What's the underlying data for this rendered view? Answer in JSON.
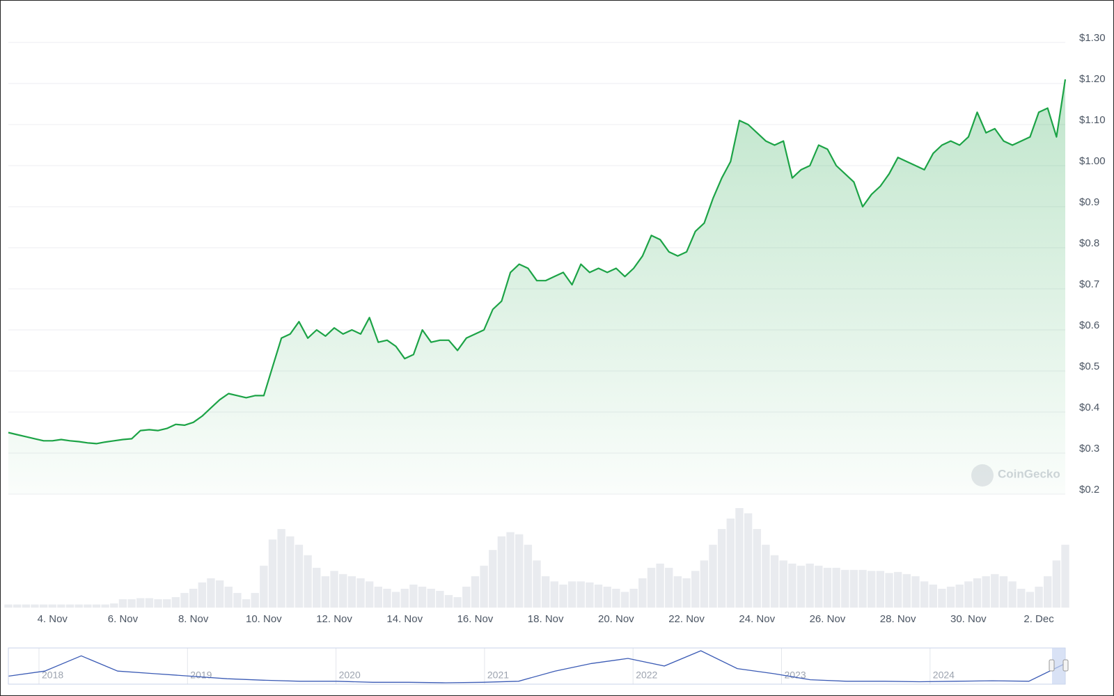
{
  "chart_data": {
    "type": "line",
    "categories": [
      null,
      null,
      null,
      null,
      null,
      "4. Nov",
      null,
      null,
      null,
      null,
      null,
      null,
      null,
      "6. Nov",
      null,
      null,
      null,
      null,
      null,
      null,
      null,
      "8. Nov",
      null,
      null,
      null,
      null,
      null,
      null,
      null,
      "10. Nov",
      null,
      null,
      null,
      null,
      null,
      null,
      null,
      "12. Nov",
      null,
      null,
      null,
      null,
      null,
      null,
      null,
      "14. Nov",
      null,
      null,
      null,
      null,
      null,
      null,
      null,
      "16. Nov",
      null,
      null,
      null,
      null,
      null,
      null,
      null,
      "18. Nov",
      null,
      null,
      null,
      null,
      null,
      null,
      null,
      "20. Nov",
      null,
      null,
      null,
      null,
      null,
      null,
      null,
      "22. Nov",
      null,
      null,
      null,
      null,
      null,
      null,
      null,
      "24. Nov",
      null,
      null,
      null,
      null,
      null,
      null,
      null,
      "26. Nov",
      null,
      null,
      null,
      null,
      null,
      null,
      null,
      "28. Nov",
      null,
      null,
      null,
      null,
      null,
      null,
      null,
      "30. Nov",
      null,
      null,
      null,
      null,
      null,
      null,
      null,
      "2. Dec",
      null,
      null,
      null
    ],
    "series": [
      {
        "color": "#1ca346",
        "values": [
          0.35,
          0.345,
          0.34,
          0.335,
          0.33,
          0.33,
          0.333,
          0.33,
          0.328,
          0.325,
          0.323,
          0.327,
          0.33,
          0.333,
          0.335,
          0.355,
          0.357,
          0.355,
          0.36,
          0.37,
          0.368,
          0.375,
          0.39,
          0.41,
          0.43,
          0.445,
          0.44,
          0.435,
          0.44,
          0.44,
          0.51,
          0.58,
          0.59,
          0.62,
          0.58,
          0.6,
          0.585,
          0.605,
          0.59,
          0.6,
          0.59,
          0.63,
          0.57,
          0.575,
          0.56,
          0.53,
          0.54,
          0.6,
          0.57,
          0.575,
          0.575,
          0.55,
          0.58,
          0.59,
          0.6,
          0.65,
          0.67,
          0.74,
          0.76,
          0.75,
          0.72,
          0.72,
          0.73,
          0.74,
          0.71,
          0.76,
          0.74,
          0.75,
          0.74,
          0.75,
          0.73,
          0.75,
          0.78,
          0.83,
          0.82,
          0.79,
          0.78,
          0.79,
          0.84,
          0.86,
          0.92,
          0.97,
          1.01,
          1.11,
          1.1,
          1.08,
          1.06,
          1.05,
          1.06,
          0.97,
          0.99,
          1.0,
          1.05,
          1.04,
          1.0,
          0.98,
          0.96,
          0.9,
          0.93,
          0.95,
          0.98,
          1.02,
          1.01,
          1.0,
          0.99,
          1.03,
          1.05,
          1.06,
          1.05,
          1.07,
          1.13,
          1.08,
          1.09,
          1.06,
          1.05,
          1.06,
          1.07,
          1.13,
          1.14,
          1.07,
          1.21
        ]
      }
    ],
    "volume": [
      3,
      3,
      3,
      3,
      3,
      3,
      3,
      3,
      3,
      3,
      3,
      3,
      4,
      8,
      8,
      9,
      9,
      8,
      8,
      10,
      14,
      18,
      24,
      28,
      26,
      20,
      14,
      8,
      14,
      40,
      65,
      75,
      68,
      60,
      50,
      38,
      30,
      35,
      32,
      30,
      28,
      25,
      20,
      18,
      15,
      18,
      22,
      20,
      18,
      16,
      12,
      10,
      20,
      30,
      40,
      55,
      68,
      72,
      70,
      60,
      45,
      30,
      25,
      22,
      25,
      25,
      24,
      22,
      20,
      18,
      15,
      18,
      28,
      38,
      42,
      38,
      30,
      28,
      35,
      45,
      60,
      75,
      85,
      95,
      90,
      75,
      60,
      50,
      45,
      42,
      40,
      42,
      40,
      38,
      38,
      36,
      36,
      36,
      35,
      35,
      33,
      34,
      32,
      30,
      25,
      22,
      18,
      20,
      22,
      25,
      28,
      30,
      32,
      30,
      25,
      18,
      15,
      20,
      30,
      45,
      60
    ],
    "ylim": [
      0.2,
      1.3
    ],
    "yticks": [
      {
        "value": 0.2,
        "label": "$0.2"
      },
      {
        "value": 0.3,
        "label": "$0.3"
      },
      {
        "value": 0.4,
        "label": "$0.4"
      },
      {
        "value": 0.5,
        "label": "$0.5"
      },
      {
        "value": 0.6,
        "label": "$0.6"
      },
      {
        "value": 0.7,
        "label": "$0.7"
      },
      {
        "value": 0.8,
        "label": "$0.8"
      },
      {
        "value": 0.9,
        "label": "$0.9"
      },
      {
        "value": 1.0,
        "label": "$1.00"
      },
      {
        "value": 1.1,
        "label": "$1.10"
      },
      {
        "value": 1.2,
        "label": "$1.20"
      },
      {
        "value": 1.3,
        "label": "$1.30"
      }
    ],
    "grid": true,
    "watermark": "CoinGecko",
    "navigator": {
      "labels": [
        "2018",
        "2019",
        "2020",
        "2021",
        "2022",
        "2023",
        "2024"
      ],
      "values": [
        0.2,
        0.3,
        0.6,
        0.3,
        0.25,
        0.2,
        0.15,
        0.12,
        0.1,
        0.1,
        0.08,
        0.08,
        0.07,
        0.08,
        0.1,
        0.3,
        0.45,
        0.55,
        0.4,
        0.7,
        0.35,
        0.25,
        0.13,
        0.1,
        0.1,
        0.09,
        0.1,
        0.11,
        0.1,
        0.45
      ]
    }
  }
}
